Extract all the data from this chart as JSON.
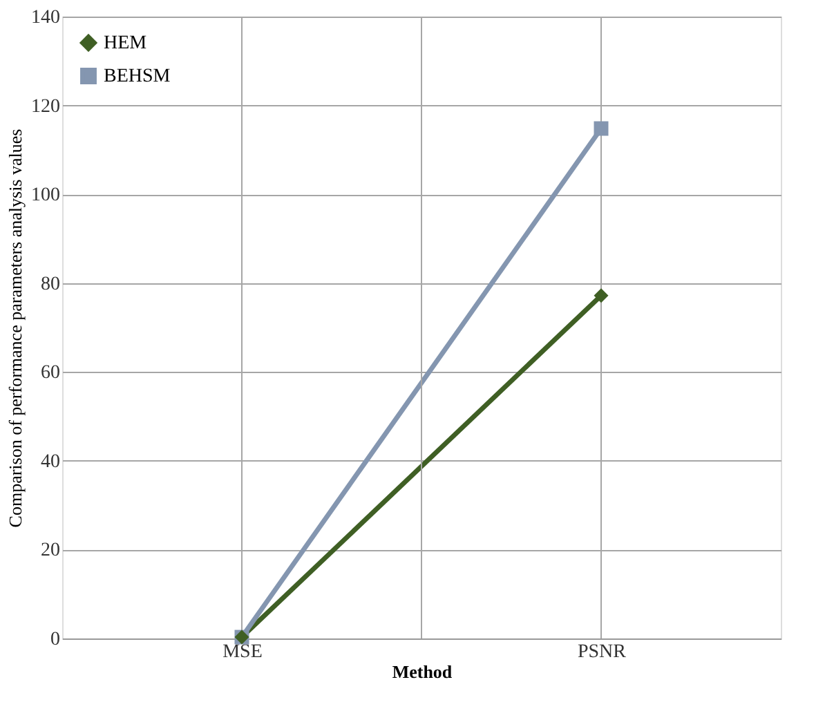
{
  "chart_data": {
    "type": "line",
    "xlabel": "Method",
    "ylabel": "Comparison of performance parameters analysis values",
    "categories": [
      "MSE",
      "PSNR"
    ],
    "series": [
      {
        "name": "HEM",
        "color": "#3f5f24",
        "marker": "diamond",
        "values": [
          0.3,
          77.2
        ]
      },
      {
        "name": "BEHSM",
        "color": "#8496b0",
        "marker": "square",
        "values": [
          0.3,
          114.8
        ]
      }
    ],
    "ylim": [
      0,
      140
    ],
    "yticks": [
      0,
      20,
      40,
      60,
      80,
      100,
      120,
      140
    ],
    "grid": true,
    "legend": "top left"
  }
}
